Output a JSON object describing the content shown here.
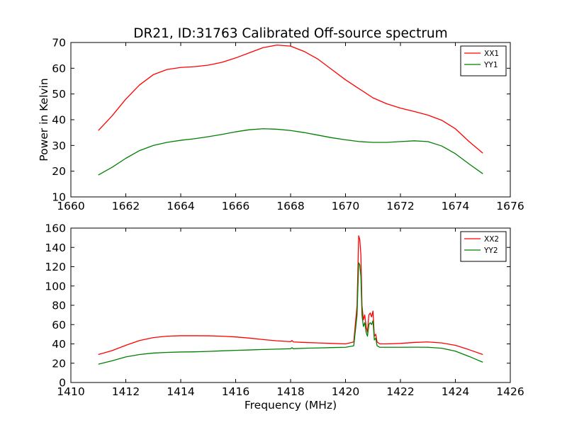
{
  "title": "DR21, ID:31763 Calibrated Off-source spectrum",
  "chart_data": [
    {
      "type": "line",
      "ylabel": "Power in Kelvin",
      "xlabel": "",
      "xlim": [
        1660,
        1676
      ],
      "ylim": [
        10,
        70
      ],
      "xticks": [
        "1660",
        "1662",
        "1664",
        "1666",
        "1668",
        "1670",
        "1672",
        "1674",
        "1676"
      ],
      "yticks": [
        "10",
        "20",
        "30",
        "40",
        "50",
        "60",
        "70"
      ],
      "grid": false,
      "legend": "top-right",
      "series": [
        {
          "name": "XX1",
          "color": "#ff0000",
          "points": [
            [
              1661.0,
              35.8
            ],
            [
              1661.5,
              41.5
            ],
            [
              1662.0,
              48.0
            ],
            [
              1662.5,
              53.5
            ],
            [
              1663.0,
              57.5
            ],
            [
              1663.5,
              59.5
            ],
            [
              1664.0,
              60.3
            ],
            [
              1664.5,
              60.6
            ],
            [
              1665.0,
              61.2
            ],
            [
              1665.5,
              62.3
            ],
            [
              1666.0,
              64.0
            ],
            [
              1666.5,
              66.0
            ],
            [
              1667.0,
              68.0
            ],
            [
              1667.5,
              69.0
            ],
            [
              1668.0,
              68.6
            ],
            [
              1668.5,
              66.5
            ],
            [
              1669.0,
              63.5
            ],
            [
              1669.5,
              59.5
            ],
            [
              1670.0,
              55.5
            ],
            [
              1670.5,
              52.0
            ],
            [
              1671.0,
              48.5
            ],
            [
              1671.5,
              46.2
            ],
            [
              1672.0,
              44.5
            ],
            [
              1672.5,
              43.2
            ],
            [
              1673.0,
              41.8
            ],
            [
              1673.5,
              39.8
            ],
            [
              1674.0,
              36.5
            ],
            [
              1674.5,
              31.5
            ],
            [
              1675.0,
              27.0
            ]
          ]
        },
        {
          "name": "YY1",
          "color": "#008000",
          "points": [
            [
              1661.0,
              18.5
            ],
            [
              1661.5,
              21.5
            ],
            [
              1662.0,
              25.0
            ],
            [
              1662.5,
              28.0
            ],
            [
              1663.0,
              30.0
            ],
            [
              1663.5,
              31.2
            ],
            [
              1664.0,
              32.0
            ],
            [
              1664.5,
              32.6
            ],
            [
              1665.0,
              33.4
            ],
            [
              1665.5,
              34.3
            ],
            [
              1666.0,
              35.3
            ],
            [
              1666.5,
              36.1
            ],
            [
              1667.0,
              36.5
            ],
            [
              1667.5,
              36.3
            ],
            [
              1668.0,
              35.8
            ],
            [
              1668.5,
              35.0
            ],
            [
              1669.0,
              34.0
            ],
            [
              1669.5,
              33.0
            ],
            [
              1670.0,
              32.2
            ],
            [
              1670.5,
              31.5
            ],
            [
              1671.0,
              31.2
            ],
            [
              1671.5,
              31.2
            ],
            [
              1672.0,
              31.5
            ],
            [
              1672.5,
              31.8
            ],
            [
              1673.0,
              31.5
            ],
            [
              1673.5,
              29.8
            ],
            [
              1674.0,
              26.8
            ],
            [
              1674.5,
              22.8
            ],
            [
              1675.0,
              19.0
            ]
          ]
        }
      ]
    },
    {
      "type": "line",
      "ylabel": "",
      "xlabel": "Frequency (MHz)",
      "xlim": [
        1410,
        1426
      ],
      "ylim": [
        0,
        160
      ],
      "xticks": [
        "1410",
        "1412",
        "1414",
        "1416",
        "1418",
        "1420",
        "1422",
        "1424",
        "1426"
      ],
      "yticks": [
        "0",
        "20",
        "40",
        "60",
        "80",
        "100",
        "120",
        "140",
        "160"
      ],
      "grid": false,
      "legend": "top-right",
      "series": [
        {
          "name": "XX2",
          "color": "#ff0000",
          "points": [
            [
              1411.0,
              29.0
            ],
            [
              1411.5,
              33.0
            ],
            [
              1412.0,
              38.5
            ],
            [
              1412.5,
              43.5
            ],
            [
              1413.0,
              46.5
            ],
            [
              1413.5,
              48.0
            ],
            [
              1414.0,
              48.5
            ],
            [
              1414.5,
              48.5
            ],
            [
              1415.0,
              48.4
            ],
            [
              1415.5,
              48.0
            ],
            [
              1416.0,
              47.2
            ],
            [
              1416.5,
              46.0
            ],
            [
              1417.0,
              44.5
            ],
            [
              1417.5,
              43.2
            ],
            [
              1418.0,
              42.3
            ],
            [
              1418.05,
              43.5
            ],
            [
              1418.1,
              42.0
            ],
            [
              1418.5,
              41.5
            ],
            [
              1419.0,
              41.0
            ],
            [
              1419.5,
              40.5
            ],
            [
              1420.0,
              40.0
            ],
            [
              1420.3,
              42.0
            ],
            [
              1420.42,
              80.0
            ],
            [
              1420.48,
              152.0
            ],
            [
              1420.52,
              148.0
            ],
            [
              1420.56,
              132.0
            ],
            [
              1420.6,
              80.0
            ],
            [
              1420.65,
              65.0
            ],
            [
              1420.7,
              70.0
            ],
            [
              1420.75,
              58.0
            ],
            [
              1420.8,
              52.0
            ],
            [
              1420.85,
              70.0
            ],
            [
              1420.9,
              72.0
            ],
            [
              1420.95,
              68.0
            ],
            [
              1421.0,
              74.0
            ],
            [
              1421.05,
              48.0
            ],
            [
              1421.1,
              50.0
            ],
            [
              1421.15,
              42.0
            ],
            [
              1421.25,
              40.0
            ],
            [
              1421.5,
              40.0
            ],
            [
              1422.0,
              40.5
            ],
            [
              1422.5,
              41.5
            ],
            [
              1423.0,
              42.0
            ],
            [
              1423.5,
              41.0
            ],
            [
              1424.0,
              38.5
            ],
            [
              1424.5,
              34.0
            ],
            [
              1425.0,
              29.0
            ]
          ]
        },
        {
          "name": "YY2",
          "color": "#008000",
          "points": [
            [
              1411.0,
              19.0
            ],
            [
              1411.5,
              22.5
            ],
            [
              1412.0,
              26.5
            ],
            [
              1412.5,
              29.0
            ],
            [
              1413.0,
              30.5
            ],
            [
              1413.5,
              31.2
            ],
            [
              1414.0,
              31.6
            ],
            [
              1414.5,
              31.8
            ],
            [
              1415.0,
              32.2
            ],
            [
              1415.5,
              32.8
            ],
            [
              1416.0,
              33.3
            ],
            [
              1416.5,
              33.7
            ],
            [
              1417.0,
              34.2
            ],
            [
              1417.5,
              34.6
            ],
            [
              1418.0,
              35.0
            ],
            [
              1418.05,
              36.0
            ],
            [
              1418.1,
              35.0
            ],
            [
              1418.5,
              35.5
            ],
            [
              1419.0,
              35.8
            ],
            [
              1419.5,
              36.2
            ],
            [
              1420.0,
              36.5
            ],
            [
              1420.3,
              38.0
            ],
            [
              1420.42,
              70.0
            ],
            [
              1420.48,
              124.0
            ],
            [
              1420.52,
              122.0
            ],
            [
              1420.56,
              110.0
            ],
            [
              1420.6,
              70.0
            ],
            [
              1420.65,
              58.0
            ],
            [
              1420.7,
              62.0
            ],
            [
              1420.75,
              52.0
            ],
            [
              1420.8,
              48.0
            ],
            [
              1420.85,
              60.0
            ],
            [
              1420.9,
              62.0
            ],
            [
              1420.95,
              60.0
            ],
            [
              1421.0,
              64.0
            ],
            [
              1421.05,
              44.0
            ],
            [
              1421.1,
              46.0
            ],
            [
              1421.15,
              38.0
            ],
            [
              1421.25,
              36.5
            ],
            [
              1421.5,
              36.5
            ],
            [
              1422.0,
              36.5
            ],
            [
              1422.5,
              36.6
            ],
            [
              1423.0,
              36.5
            ],
            [
              1423.5,
              35.5
            ],
            [
              1424.0,
              32.5
            ],
            [
              1424.5,
              27.0
            ],
            [
              1425.0,
              21.0
            ]
          ]
        }
      ]
    }
  ]
}
